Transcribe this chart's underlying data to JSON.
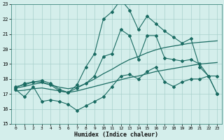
{
  "xlabel": "Humidex (Indice chaleur)",
  "xlim": [
    -0.5,
    23.5
  ],
  "ylim": [
    15,
    23
  ],
  "yticks": [
    15,
    16,
    17,
    18,
    19,
    20,
    21,
    22,
    23
  ],
  "xticks": [
    0,
    1,
    2,
    3,
    4,
    5,
    6,
    7,
    8,
    9,
    10,
    11,
    12,
    13,
    14,
    15,
    16,
    17,
    18,
    19,
    20,
    21,
    22,
    23
  ],
  "bg_color": "#d4eeeb",
  "grid_color": "#a8d0cc",
  "line_color": "#1a6b62",
  "hours": [
    0,
    1,
    2,
    3,
    4,
    5,
    6,
    7,
    8,
    9,
    10,
    11,
    12,
    13,
    14,
    15,
    16,
    17,
    18,
    19,
    20,
    21,
    22,
    23
  ],
  "max_line": [
    17.4,
    17.7,
    17.8,
    17.9,
    17.7,
    17.3,
    17.1,
    17.6,
    18.8,
    19.7,
    22.0,
    22.5,
    23.3,
    22.6,
    21.3,
    22.2,
    21.7,
    21.2,
    20.8,
    20.4,
    20.7,
    18.8,
    18.2,
    18.2
  ],
  "mean_line": [
    17.5,
    17.6,
    17.8,
    17.8,
    17.6,
    17.2,
    17.1,
    17.4,
    17.7,
    18.2,
    19.5,
    19.7,
    21.3,
    20.9,
    19.3,
    20.9,
    20.9,
    19.4,
    19.3,
    19.2,
    19.3,
    19.0,
    18.2,
    17.0
  ],
  "min_line": [
    17.3,
    16.8,
    17.5,
    16.5,
    16.6,
    16.5,
    16.3,
    15.9,
    16.2,
    16.5,
    16.8,
    17.5,
    18.2,
    18.3,
    18.0,
    18.5,
    18.8,
    17.8,
    17.5,
    17.8,
    18.0,
    18.0,
    18.2,
    17.0
  ],
  "upper_line": [
    17.4,
    17.5,
    17.65,
    17.75,
    17.6,
    17.45,
    17.35,
    17.45,
    17.7,
    18.0,
    18.35,
    18.65,
    19.0,
    19.3,
    19.5,
    19.75,
    19.95,
    20.1,
    20.2,
    20.3,
    20.4,
    20.45,
    20.5,
    20.55
  ],
  "lower_line": [
    17.2,
    17.25,
    17.35,
    17.4,
    17.3,
    17.2,
    17.1,
    17.2,
    17.35,
    17.5,
    17.65,
    17.8,
    17.95,
    18.1,
    18.2,
    18.35,
    18.5,
    18.6,
    18.7,
    18.8,
    18.9,
    19.0,
    19.05,
    19.1
  ]
}
